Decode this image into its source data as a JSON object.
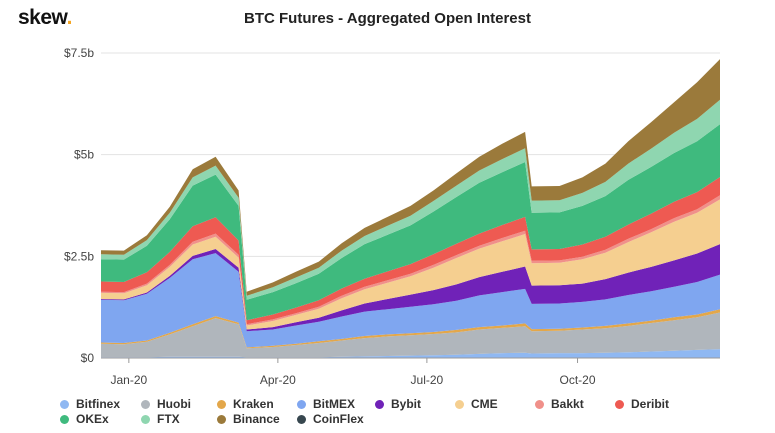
{
  "header": {
    "logo_text": "skew",
    "logo_dot": ".",
    "brand_accent": "#f5a623"
  },
  "chart_data": {
    "type": "area",
    "stacked": true,
    "title": "BTC Futures - Aggregated Open Interest",
    "xlabel": "",
    "ylabel": "",
    "x_ticks": [
      "Jan-20",
      "Apr-20",
      "Jul-20",
      "Oct-20"
    ],
    "y_ticks": [
      "$0",
      "$2.5b",
      "$5b",
      "$7.5b"
    ],
    "ylim": [
      0,
      7.5
    ],
    "unit": "USD billions",
    "grid": "horizontal",
    "legend_position": "bottom",
    "x": [
      "2019-12-15",
      "2019-12-29",
      "2020-01-12",
      "2020-01-26",
      "2020-02-09",
      "2020-02-23",
      "2020-03-08",
      "2020-03-13",
      "2020-03-29",
      "2020-04-12",
      "2020-04-26",
      "2020-05-10",
      "2020-05-24",
      "2020-06-07",
      "2020-06-21",
      "2020-07-05",
      "2020-07-19",
      "2020-08-02",
      "2020-08-16",
      "2020-08-30",
      "2020-09-03",
      "2020-09-20",
      "2020-10-04",
      "2020-10-18",
      "2020-11-01",
      "2020-11-15",
      "2020-11-29",
      "2020-12-13",
      "2020-12-27"
    ],
    "series": [
      {
        "name": "Bitfinex",
        "color": "#8fb8f2",
        "values": [
          0.02,
          0.02,
          0.02,
          0.03,
          0.03,
          0.03,
          0.03,
          0.02,
          0.02,
          0.02,
          0.02,
          0.03,
          0.04,
          0.05,
          0.06,
          0.07,
          0.08,
          0.1,
          0.12,
          0.13,
          0.11,
          0.12,
          0.12,
          0.13,
          0.14,
          0.16,
          0.18,
          0.2,
          0.22
        ]
      },
      {
        "name": "Huobi",
        "color": "#b0b6bc",
        "values": [
          0.33,
          0.32,
          0.38,
          0.55,
          0.75,
          0.95,
          0.8,
          0.22,
          0.25,
          0.3,
          0.35,
          0.4,
          0.45,
          0.48,
          0.5,
          0.52,
          0.55,
          0.6,
          0.62,
          0.65,
          0.55,
          0.55,
          0.58,
          0.6,
          0.65,
          0.7,
          0.75,
          0.8,
          0.9
        ]
      },
      {
        "name": "Kraken",
        "color": "#e3a74a",
        "values": [
          0.03,
          0.03,
          0.03,
          0.04,
          0.05,
          0.05,
          0.04,
          0.02,
          0.03,
          0.03,
          0.04,
          0.04,
          0.05,
          0.05,
          0.05,
          0.05,
          0.06,
          0.06,
          0.06,
          0.07,
          0.05,
          0.05,
          0.05,
          0.06,
          0.06,
          0.06,
          0.07,
          0.07,
          0.08
        ]
      },
      {
        "name": "BitMEX",
        "color": "#7fa6f0",
        "values": [
          1.05,
          1.05,
          1.15,
          1.35,
          1.6,
          1.55,
          1.25,
          0.4,
          0.4,
          0.45,
          0.48,
          0.55,
          0.6,
          0.62,
          0.65,
          0.68,
          0.72,
          0.78,
          0.82,
          0.85,
          0.62,
          0.62,
          0.63,
          0.65,
          0.7,
          0.72,
          0.75,
          0.8,
          0.85
        ]
      },
      {
        "name": "Bybit",
        "color": "#7022b8",
        "values": [
          0.02,
          0.02,
          0.03,
          0.05,
          0.08,
          0.1,
          0.1,
          0.04,
          0.06,
          0.08,
          0.1,
          0.15,
          0.2,
          0.25,
          0.3,
          0.35,
          0.4,
          0.45,
          0.5,
          0.55,
          0.45,
          0.45,
          0.45,
          0.5,
          0.55,
          0.6,
          0.65,
          0.7,
          0.75
        ]
      },
      {
        "name": "CME",
        "color": "#f5cf90",
        "values": [
          0.15,
          0.15,
          0.18,
          0.22,
          0.28,
          0.3,
          0.25,
          0.1,
          0.15,
          0.18,
          0.22,
          0.3,
          0.35,
          0.4,
          0.45,
          0.55,
          0.65,
          0.7,
          0.75,
          0.8,
          0.55,
          0.55,
          0.6,
          0.65,
          0.75,
          0.85,
          0.95,
          1.0,
          1.1
        ]
      },
      {
        "name": "Bakkt",
        "color": "#f0908a",
        "values": [
          0.03,
          0.03,
          0.04,
          0.05,
          0.07,
          0.08,
          0.07,
          0.03,
          0.04,
          0.04,
          0.05,
          0.06,
          0.06,
          0.06,
          0.06,
          0.07,
          0.07,
          0.07,
          0.08,
          0.08,
          0.06,
          0.06,
          0.06,
          0.07,
          0.08,
          0.08,
          0.09,
          0.09,
          0.1
        ]
      },
      {
        "name": "Deribit",
        "color": "#ee5a52",
        "values": [
          0.25,
          0.25,
          0.28,
          0.32,
          0.38,
          0.4,
          0.35,
          0.1,
          0.12,
          0.14,
          0.16,
          0.18,
          0.2,
          0.22,
          0.24,
          0.26,
          0.28,
          0.3,
          0.32,
          0.34,
          0.28,
          0.28,
          0.3,
          0.32,
          0.35,
          0.38,
          0.4,
          0.42,
          0.45
        ]
      },
      {
        "name": "OKEx",
        "color": "#3fba7e",
        "values": [
          0.55,
          0.55,
          0.65,
          0.8,
          1.0,
          1.05,
          0.85,
          0.5,
          0.55,
          0.6,
          0.65,
          0.75,
          0.85,
          0.9,
          0.95,
          1.05,
          1.15,
          1.25,
          1.3,
          1.35,
          0.9,
          0.9,
          0.95,
          1.0,
          1.1,
          1.15,
          1.2,
          1.25,
          1.3
        ]
      },
      {
        "name": "FTX",
        "color": "#8fd6b0",
        "values": [
          0.12,
          0.12,
          0.14,
          0.16,
          0.2,
          0.22,
          0.2,
          0.1,
          0.12,
          0.14,
          0.15,
          0.18,
          0.2,
          0.22,
          0.24,
          0.26,
          0.28,
          0.3,
          0.32,
          0.34,
          0.3,
          0.3,
          0.32,
          0.35,
          0.4,
          0.45,
          0.5,
          0.55,
          0.6
        ]
      },
      {
        "name": "Binance",
        "color": "#9b7a3b",
        "values": [
          0.1,
          0.1,
          0.12,
          0.15,
          0.2,
          0.22,
          0.18,
          0.1,
          0.12,
          0.14,
          0.15,
          0.18,
          0.2,
          0.22,
          0.24,
          0.26,
          0.3,
          0.34,
          0.38,
          0.4,
          0.35,
          0.35,
          0.38,
          0.45,
          0.55,
          0.65,
          0.75,
          0.9,
          1.0
        ]
      },
      {
        "name": "CoinFlex",
        "color": "#37474f",
        "values": [
          0,
          0,
          0,
          0,
          0,
          0,
          0,
          0,
          0,
          0,
          0,
          0,
          0,
          0,
          0,
          0,
          0,
          0,
          0,
          0,
          0,
          0,
          0,
          0,
          0,
          0,
          0,
          0,
          0
        ]
      }
    ]
  }
}
